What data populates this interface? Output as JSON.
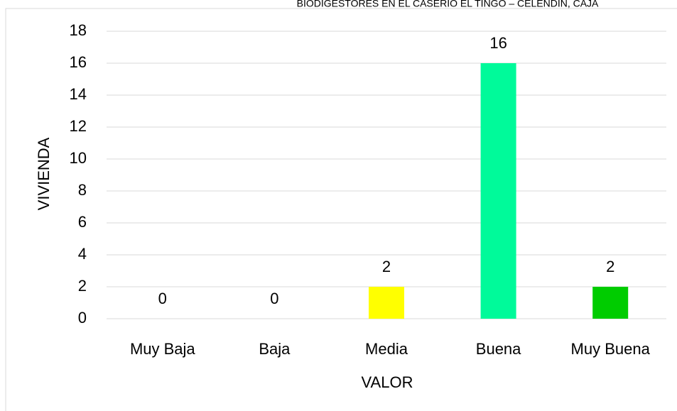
{
  "chart_data": {
    "type": "bar",
    "title": "BIODIGESTORES EN EL CASERIO EL TINGO – CELENDIN, CAJA",
    "y_label": "VIVIENDA",
    "x_label": "VALOR",
    "categories": [
      "Muy Baja",
      "Baja",
      "Media",
      "Buena",
      "Muy Buena"
    ],
    "values": [
      0,
      0,
      2,
      16,
      2
    ],
    "colors": [
      "#5b9bd5",
      "#ed7d31",
      "#ffff00",
      "#00fa9a",
      "#00cc00"
    ],
    "ylim": [
      0,
      18
    ],
    "yticks": [
      0,
      2,
      4,
      6,
      8,
      10,
      12,
      14,
      16,
      18
    ],
    "grid": true
  }
}
